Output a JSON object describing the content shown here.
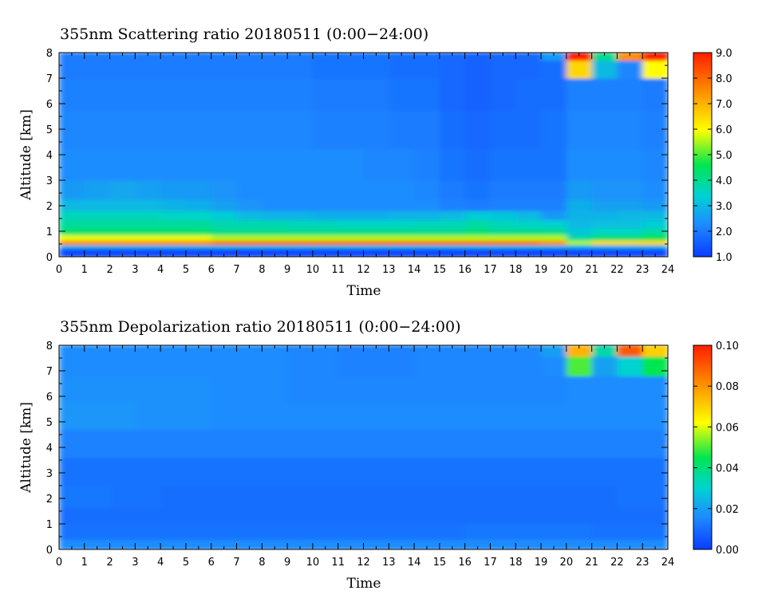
{
  "chart_data": [
    {
      "type": "heatmap",
      "title": "355nm Scattering ratio  20180511 (0:00−24:00)",
      "xlabel": "Time",
      "ylabel": "Altitude [km]",
      "xlim": [
        0,
        24
      ],
      "ylim": [
        0,
        8
      ],
      "x_ticks": [
        "0",
        "1",
        "2",
        "3",
        "4",
        "5",
        "6",
        "7",
        "8",
        "9",
        "10",
        "11",
        "12",
        "13",
        "14",
        "15",
        "16",
        "17",
        "18",
        "19",
        "20",
        "21",
        "22",
        "23",
        "24"
      ],
      "y_ticks": [
        "0",
        "1",
        "2",
        "3",
        "4",
        "5",
        "6",
        "7",
        "8"
      ],
      "colorbar": {
        "range": [
          1.0,
          9.0
        ],
        "ticks": [
          "1.0",
          "2.0",
          "3.0",
          "4.0",
          "5.0",
          "6.0",
          "7.0",
          "8.0",
          "9.0"
        ]
      },
      "colormap": [
        "#0a3cff",
        "#1e8cff",
        "#00d2d2",
        "#00e650",
        "#ffff00",
        "#ffa000",
        "#ff1e00"
      ],
      "rows": [
        {
          "altitude": 0.25,
          "values": [
            1.2,
            1.2,
            1.2,
            1.2,
            1.2,
            1.2,
            1.2,
            1.2,
            1.2,
            1.2,
            1.2,
            1.2,
            1.2,
            1.2,
            1.2,
            1.2,
            1.2,
            1.2,
            1.2,
            1.2,
            1.2,
            1.2,
            1.2,
            1.2
          ]
        },
        {
          "altitude": 0.4,
          "values": [
            2.8,
            2.8,
            2.8,
            2.8,
            2.8,
            2.8,
            2.8,
            2.8,
            2.8,
            2.8,
            2.8,
            2.8,
            2.8,
            2.8,
            2.8,
            2.8,
            2.8,
            2.8,
            2.8,
            2.8,
            2.8,
            2.8,
            2.8,
            2.8
          ]
        },
        {
          "altitude": 0.55,
          "values": [
            7.5,
            7.5,
            7.5,
            7.5,
            7.5,
            7.5,
            7.8,
            7.8,
            7.8,
            7.8,
            7.8,
            7.8,
            7.8,
            7.8,
            7.8,
            7.8,
            7.8,
            7.8,
            7.8,
            7.5,
            5.5,
            6.5,
            6.5,
            6.5
          ]
        },
        {
          "altitude": 0.75,
          "values": [
            5.8,
            5.8,
            5.8,
            5.8,
            5.8,
            5.8,
            5.5,
            5.5,
            5.5,
            5.5,
            5.5,
            5.5,
            5.5,
            5.5,
            5.5,
            5.5,
            5.5,
            5.5,
            5.5,
            5.5,
            3.8,
            4.2,
            4.2,
            4.5
          ]
        },
        {
          "altitude": 1.0,
          "values": [
            4.3,
            4.3,
            4.3,
            4.3,
            4.3,
            4.3,
            4.0,
            4.0,
            4.0,
            4.0,
            4.0,
            4.0,
            4.0,
            4.0,
            4.0,
            4.0,
            4.2,
            4.0,
            4.0,
            4.0,
            3.2,
            3.5,
            3.5,
            3.8
          ]
        },
        {
          "altitude": 1.3,
          "values": [
            3.9,
            3.9,
            3.9,
            3.9,
            3.9,
            3.9,
            3.7,
            3.7,
            3.7,
            3.6,
            3.6,
            3.5,
            3.5,
            3.5,
            3.6,
            3.6,
            3.8,
            3.6,
            3.5,
            3.4,
            3.0,
            3.1,
            3.1,
            3.3
          ]
        },
        {
          "altitude": 1.6,
          "values": [
            3.6,
            3.6,
            3.6,
            3.6,
            3.5,
            3.5,
            3.3,
            3.0,
            2.9,
            2.9,
            2.8,
            2.8,
            2.8,
            2.9,
            2.9,
            3.0,
            3.3,
            3.2,
            3.0,
            2.5,
            2.9,
            2.9,
            3.0,
            3.0
          ]
        },
        {
          "altitude": 2.0,
          "values": [
            3.0,
            3.0,
            3.0,
            3.0,
            2.9,
            2.8,
            2.6,
            2.4,
            2.3,
            2.3,
            2.3,
            2.3,
            2.3,
            2.3,
            2.3,
            2.1,
            2.0,
            2.1,
            2.1,
            2.1,
            2.8,
            2.6,
            2.6,
            2.5
          ]
        },
        {
          "altitude": 2.5,
          "values": [
            2.5,
            2.6,
            2.7,
            2.6,
            2.5,
            2.5,
            2.4,
            2.3,
            2.3,
            2.3,
            2.3,
            2.3,
            2.3,
            2.3,
            2.2,
            2.0,
            1.9,
            2.0,
            2.0,
            2.0,
            2.5,
            2.4,
            2.4,
            2.3
          ]
        },
        {
          "altitude": 3.5,
          "values": [
            2.3,
            2.3,
            2.3,
            2.3,
            2.3,
            2.3,
            2.3,
            2.3,
            2.3,
            2.3,
            2.3,
            2.3,
            2.2,
            2.2,
            2.1,
            1.9,
            1.8,
            1.9,
            1.9,
            1.9,
            2.3,
            2.3,
            2.3,
            2.2
          ]
        },
        {
          "altitude": 5.0,
          "values": [
            2.2,
            2.2,
            2.2,
            2.2,
            2.2,
            2.2,
            2.2,
            2.2,
            2.2,
            2.2,
            2.1,
            2.1,
            2.1,
            2.0,
            2.0,
            1.8,
            1.7,
            1.8,
            1.8,
            1.9,
            2.2,
            2.2,
            2.2,
            2.1
          ]
        },
        {
          "altitude": 6.5,
          "values": [
            2.1,
            2.1,
            2.1,
            2.1,
            2.1,
            2.1,
            2.1,
            2.1,
            2.1,
            2.1,
            2.0,
            2.0,
            2.0,
            1.9,
            1.9,
            1.7,
            1.6,
            1.7,
            1.8,
            1.8,
            2.1,
            2.1,
            2.1,
            2.0
          ]
        },
        {
          "altitude": 7.5,
          "values": [
            2.0,
            2.0,
            2.0,
            2.0,
            2.0,
            2.0,
            2.0,
            2.0,
            2.0,
            2.0,
            1.9,
            1.9,
            1.9,
            1.8,
            1.8,
            1.7,
            1.6,
            1.7,
            1.7,
            1.8,
            6.5,
            3.0,
            2.2,
            6.0
          ]
        },
        {
          "altitude": 7.9,
          "values": [
            2.0,
            2.0,
            2.0,
            2.0,
            2.0,
            2.0,
            2.0,
            2.0,
            2.0,
            2.0,
            1.9,
            1.9,
            1.9,
            1.8,
            1.8,
            1.7,
            1.6,
            1.7,
            1.7,
            2.5,
            9.0,
            4.0,
            7.5,
            9.0
          ]
        }
      ]
    },
    {
      "type": "heatmap",
      "title": "355nm Depolarization ratio  20180511 (0:00−24:00)",
      "xlabel": "Time",
      "ylabel": "Altitude [km]",
      "xlim": [
        0,
        24
      ],
      "ylim": [
        0,
        8
      ],
      "x_ticks": [
        "0",
        "1",
        "2",
        "3",
        "4",
        "5",
        "6",
        "7",
        "8",
        "9",
        "10",
        "11",
        "12",
        "13",
        "14",
        "15",
        "16",
        "17",
        "18",
        "19",
        "20",
        "21",
        "22",
        "23",
        "24"
      ],
      "y_ticks": [
        "0",
        "1",
        "2",
        "3",
        "4",
        "5",
        "6",
        "7",
        "8"
      ],
      "colorbar": {
        "range": [
          0.0,
          0.1
        ],
        "ticks": [
          "0.00",
          "0.02",
          "0.04",
          "0.06",
          "0.08",
          "0.10"
        ]
      },
      "colormap": [
        "#0a3cff",
        "#1e8cff",
        "#00d2d2",
        "#00e650",
        "#ffff00",
        "#ffa000",
        "#ff1e00"
      ],
      "rows": [
        {
          "altitude": 0.1,
          "values": [
            0.016,
            0.016,
            0.016,
            0.016,
            0.016,
            0.016,
            0.016,
            0.016,
            0.016,
            0.016,
            0.016,
            0.016,
            0.016,
            0.016,
            0.016,
            0.016,
            0.016,
            0.016,
            0.016,
            0.016,
            0.016,
            0.016,
            0.016,
            0.016
          ]
        },
        {
          "altitude": 0.7,
          "values": [
            0.011,
            0.011,
            0.011,
            0.011,
            0.011,
            0.011,
            0.011,
            0.011,
            0.011,
            0.011,
            0.011,
            0.011,
            0.011,
            0.011,
            0.011,
            0.011,
            0.012,
            0.012,
            0.012,
            0.012,
            0.012,
            0.011,
            0.011,
            0.011
          ]
        },
        {
          "altitude": 1.3,
          "values": [
            0.01,
            0.01,
            0.01,
            0.01,
            0.01,
            0.01,
            0.01,
            0.01,
            0.01,
            0.01,
            0.01,
            0.01,
            0.01,
            0.01,
            0.01,
            0.01,
            0.01,
            0.01,
            0.01,
            0.01,
            0.01,
            0.01,
            0.01,
            0.01
          ]
        },
        {
          "altitude": 2.0,
          "values": [
            0.012,
            0.012,
            0.011,
            0.011,
            0.01,
            0.01,
            0.01,
            0.01,
            0.01,
            0.01,
            0.01,
            0.01,
            0.01,
            0.01,
            0.01,
            0.01,
            0.01,
            0.01,
            0.01,
            0.01,
            0.01,
            0.01,
            0.011,
            0.011
          ]
        },
        {
          "altitude": 3.0,
          "values": [
            0.011,
            0.011,
            0.011,
            0.011,
            0.011,
            0.011,
            0.011,
            0.011,
            0.011,
            0.011,
            0.011,
            0.011,
            0.011,
            0.011,
            0.011,
            0.011,
            0.011,
            0.011,
            0.011,
            0.011,
            0.011,
            0.011,
            0.011,
            0.011
          ]
        },
        {
          "altitude": 4.2,
          "values": [
            0.014,
            0.014,
            0.014,
            0.014,
            0.014,
            0.014,
            0.014,
            0.014,
            0.014,
            0.014,
            0.014,
            0.014,
            0.014,
            0.014,
            0.014,
            0.014,
            0.014,
            0.014,
            0.014,
            0.014,
            0.014,
            0.014,
            0.014,
            0.014
          ]
        },
        {
          "altitude": 5.2,
          "values": [
            0.018,
            0.018,
            0.018,
            0.017,
            0.017,
            0.017,
            0.016,
            0.016,
            0.016,
            0.016,
            0.016,
            0.016,
            0.016,
            0.016,
            0.016,
            0.016,
            0.016,
            0.016,
            0.016,
            0.016,
            0.016,
            0.016,
            0.016,
            0.016
          ]
        },
        {
          "altitude": 6.3,
          "values": [
            0.017,
            0.017,
            0.017,
            0.017,
            0.017,
            0.017,
            0.016,
            0.016,
            0.016,
            0.015,
            0.015,
            0.015,
            0.015,
            0.015,
            0.015,
            0.015,
            0.015,
            0.015,
            0.015,
            0.015,
            0.016,
            0.016,
            0.016,
            0.016
          ]
        },
        {
          "altitude": 7.3,
          "values": [
            0.016,
            0.016,
            0.016,
            0.016,
            0.016,
            0.016,
            0.016,
            0.016,
            0.016,
            0.015,
            0.015,
            0.014,
            0.014,
            0.014,
            0.015,
            0.015,
            0.015,
            0.015,
            0.015,
            0.016,
            0.05,
            0.02,
            0.03,
            0.045
          ]
        },
        {
          "altitude": 7.85,
          "values": [
            0.016,
            0.016,
            0.016,
            0.016,
            0.016,
            0.016,
            0.016,
            0.016,
            0.016,
            0.015,
            0.015,
            0.014,
            0.014,
            0.014,
            0.015,
            0.015,
            0.015,
            0.015,
            0.015,
            0.02,
            0.075,
            0.035,
            0.09,
            0.07
          ]
        }
      ]
    }
  ]
}
